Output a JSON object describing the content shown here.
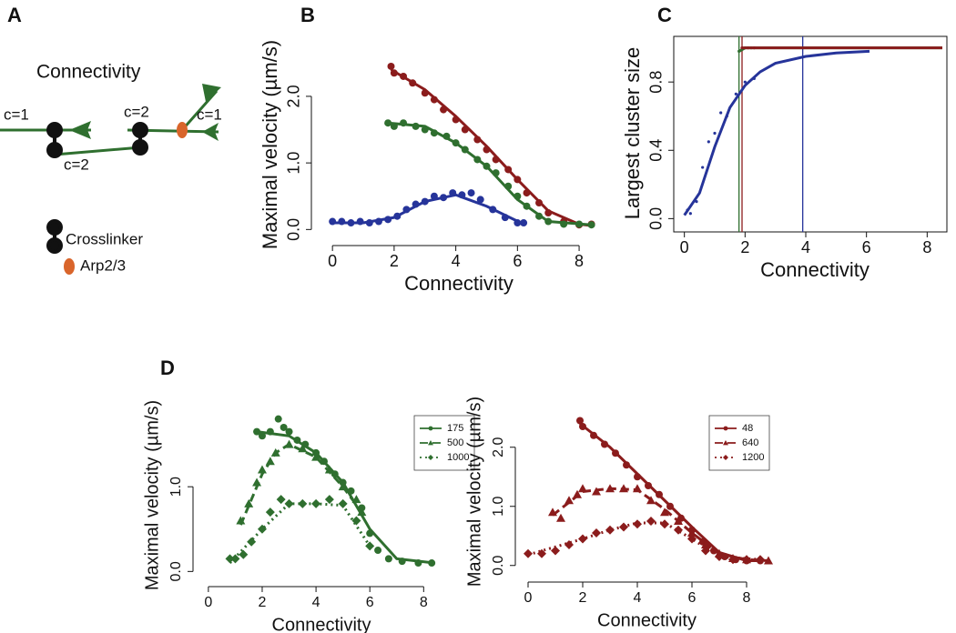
{
  "panel_labels": [
    "A",
    "B",
    "C",
    "D"
  ],
  "diagram": {
    "title": "Connectivity",
    "labels": [
      "c=1",
      "c=2",
      "c=2",
      "c=1"
    ],
    "legend": [
      "Crosslinker",
      "Arp2/3"
    ]
  },
  "chart_data": [
    {
      "type": "scatter",
      "xlabel": "Connectivity",
      "ylabel": "Maximal velocity (µm/s)",
      "xlim": [
        -0.3,
        8.5
      ],
      "ylim": [
        -0.05,
        2.6
      ],
      "xticks": [
        0,
        2,
        4,
        6,
        8
      ],
      "yticks": [
        {
          "value": 0,
          "label": "0.0"
        },
        {
          "value": 1,
          "label": "1.0"
        },
        {
          "value": 2,
          "label": "2.0"
        }
      ],
      "series": [
        {
          "color": "#8b1c1c",
          "marker": "circle",
          "x": [
            1.9,
            2,
            2.3,
            2.6,
            3,
            3.3,
            3.6,
            4,
            4.3,
            4.7,
            5,
            5.3,
            5.7,
            6,
            6.3,
            6.7,
            7,
            7.5,
            8,
            8.4
          ],
          "values": [
            2.45,
            2.35,
            2.3,
            2.2,
            2.05,
            1.95,
            1.8,
            1.65,
            1.5,
            1.35,
            1.2,
            1.05,
            0.9,
            0.75,
            0.55,
            0.4,
            0.25,
            0.12,
            0.07,
            0.08
          ],
          "curve": {
            "x": [
              1.9,
              3,
              4,
              5,
              6,
              7,
              8,
              8.4
            ],
            "values": [
              2.4,
              2.1,
              1.7,
              1.25,
              0.75,
              0.28,
              0.08,
              0.06
            ]
          }
        },
        {
          "color": "#2f6f2f",
          "marker": "circle",
          "x": [
            1.8,
            2,
            2.3,
            2.7,
            3,
            3.3,
            3.7,
            4,
            4.3,
            4.7,
            5,
            5.3,
            5.7,
            6,
            6.3,
            6.7,
            7,
            7.5,
            8,
            8.4
          ],
          "values": [
            1.6,
            1.55,
            1.6,
            1.55,
            1.5,
            1.45,
            1.4,
            1.3,
            1.2,
            1.05,
            0.95,
            0.85,
            0.65,
            0.5,
            0.35,
            0.2,
            0.12,
            0.08,
            0.08,
            0.07
          ],
          "curve": {
            "x": [
              1.8,
              3,
              4,
              5,
              6,
              7,
              8.4
            ],
            "values": [
              1.6,
              1.55,
              1.3,
              0.95,
              0.45,
              0.12,
              0.07
            ]
          }
        },
        {
          "color": "#26349a",
          "marker": "circle",
          "x": [
            0,
            0.3,
            0.6,
            0.9,
            1.2,
            1.5,
            1.8,
            2.1,
            2.4,
            2.7,
            3,
            3.3,
            3.6,
            3.9,
            4.2,
            4.5,
            4.8,
            5.2,
            5.6,
            6,
            6.2
          ],
          "values": [
            0.12,
            0.12,
            0.1,
            0.12,
            0.1,
            0.12,
            0.15,
            0.2,
            0.3,
            0.38,
            0.42,
            0.5,
            0.48,
            0.55,
            0.52,
            0.55,
            0.45,
            0.3,
            0.18,
            0.1,
            0.1
          ],
          "curve": {
            "x": [
              0,
              1,
              2,
              3,
              4,
              5,
              6.2
            ],
            "values": [
              0.1,
              0.1,
              0.18,
              0.42,
              0.52,
              0.35,
              0.08
            ]
          }
        }
      ]
    },
    {
      "type": "scatter",
      "xlabel": "Connectivity",
      "ylabel": "Largest cluster size",
      "frame": true,
      "xlim": [
        -0.2,
        8.8
      ],
      "ylim": [
        -0.03,
        1.03
      ],
      "xticks": [
        0,
        2,
        4,
        6,
        8
      ],
      "yticks": [
        {
          "value": 0,
          "label": "0.0"
        },
        {
          "value": 0.4,
          "label": "0.4"
        },
        {
          "value": 0.8,
          "label": "0.8"
        }
      ],
      "vlines": [
        {
          "value": 1.8,
          "color": "#2f6f2f"
        },
        {
          "value": 1.9,
          "color": "#8b1c1c"
        },
        {
          "value": 3.9,
          "color": "#26349a"
        }
      ],
      "series": [
        {
          "color": "#26349a",
          "marker": "dot",
          "x": [
            0.1,
            0.2,
            0.4,
            0.6,
            0.8,
            1,
            1.2,
            1.4,
            1.7,
            2,
            2.3
          ],
          "values": [
            0.05,
            0.03,
            0.1,
            0.3,
            0.45,
            0.5,
            0.62,
            0.6,
            0.73,
            0.8,
            0.82
          ],
          "curve": {
            "x": [
              0,
              0.5,
              1,
              1.5,
              2,
              2.5,
              3,
              4,
              5,
              6.1
            ],
            "values": [
              0.02,
              0.15,
              0.42,
              0.65,
              0.78,
              0.86,
              0.91,
              0.95,
              0.97,
              0.98
            ]
          }
        },
        {
          "color": "#2f6f2f",
          "marker": "dot",
          "x": [
            1.8,
            2,
            2.2
          ],
          "values": [
            0.98,
            1,
            1
          ],
          "curve": {
            "x": [
              1.8,
              2,
              8.5
            ],
            "values": [
              0.98,
              1,
              1
            ]
          }
        },
        {
          "color": "#8b1c1c",
          "marker": "dot",
          "x": [
            1.9,
            2.1,
            2.3
          ],
          "values": [
            1,
            1,
            1
          ],
          "curve": {
            "x": [
              1.9,
              8.5
            ],
            "values": [
              1,
              1
            ]
          }
        }
      ]
    },
    {
      "type": "scatter",
      "xlabel": "Connectivity",
      "ylabel": "Maximal velocity (µm/s)",
      "legend": "top-right",
      "xlim": [
        -0.3,
        8.7
      ],
      "ylim": [
        -0.05,
        1.85
      ],
      "xticks": [
        0,
        2,
        4,
        6,
        8
      ],
      "yticks": [
        {
          "value": 0,
          "label": "0.0"
        },
        {
          "value": 1,
          "label": "1.0"
        }
      ],
      "series": [
        {
          "name": "175",
          "color": "#2f6f2f",
          "marker": "circle",
          "dash": "solid",
          "x": [
            1.8,
            2,
            2.3,
            2.6,
            2.8,
            3,
            3.3,
            3.6,
            4,
            4.3,
            4.7,
            5,
            5.3,
            5.7,
            6,
            6.3,
            6.7,
            7.2,
            7.8,
            8.3
          ],
          "values": [
            1.65,
            1.6,
            1.65,
            1.8,
            1.7,
            1.65,
            1.55,
            1.5,
            1.4,
            1.3,
            1.15,
            1.05,
            0.95,
            0.75,
            0.45,
            0.25,
            0.15,
            0.12,
            0.1,
            0.1
          ],
          "curve": {
            "x": [
              1.8,
              3,
              4,
              5,
              6,
              7,
              8.4
            ],
            "values": [
              1.65,
              1.6,
              1.4,
              1.05,
              0.5,
              0.15,
              0.1
            ]
          }
        },
        {
          "name": "500",
          "color": "#2f6f2f",
          "marker": "triangle",
          "dash": "dashed",
          "x": [
            1.2,
            1.5,
            1.8,
            2,
            2.3,
            2.5,
            3,
            3.5,
            4,
            4.5,
            5,
            5.5,
            5.7
          ],
          "values": [
            0.6,
            0.8,
            1.05,
            1.2,
            1.3,
            1.4,
            1.5,
            1.45,
            1.35,
            1.2,
            1,
            0.85,
            0.7
          ],
          "curve": {
            "x": [
              1.2,
              2,
              2.5,
              3,
              4,
              5,
              5.7
            ],
            "values": [
              0.55,
              1.15,
              1.4,
              1.5,
              1.35,
              1,
              0.7
            ]
          }
        },
        {
          "name": "1000",
          "color": "#2f6f2f",
          "marker": "diamond",
          "dash": "dotted",
          "x": [
            0.8,
            1,
            1.3,
            1.6,
            2,
            2.3,
            2.7,
            3,
            3.5,
            4,
            4.5,
            5,
            5.5,
            6
          ],
          "values": [
            0.15,
            0.15,
            0.2,
            0.35,
            0.5,
            0.7,
            0.85,
            0.8,
            0.8,
            0.8,
            0.85,
            0.8,
            0.6,
            0.3
          ],
          "curve": {
            "x": [
              0.8,
              2,
              3,
              4,
              5,
              6
            ],
            "values": [
              0.1,
              0.5,
              0.8,
              0.8,
              0.78,
              0.3
            ]
          }
        }
      ]
    },
    {
      "type": "scatter",
      "xlabel": "Connectivity",
      "ylabel": "Maximal velocity (µm/s)",
      "legend": "top-right",
      "xlim": [
        -0.3,
        9
      ],
      "ylim": [
        -0.05,
        2.55
      ],
      "xticks": [
        0,
        2,
        4,
        6,
        8
      ],
      "yticks": [
        {
          "value": 0,
          "label": "0.0"
        },
        {
          "value": 1,
          "label": "1.0"
        },
        {
          "value": 2,
          "label": "2.0"
        }
      ],
      "series": [
        {
          "name": "48",
          "color": "#8b1c1c",
          "marker": "circle",
          "dash": "solid",
          "x": [
            1.9,
            2,
            2.4,
            2.8,
            3.2,
            3.6,
            4,
            4.4,
            4.8,
            5.2,
            5.6,
            6,
            6.4,
            6.8,
            7.2,
            7.6,
            8,
            8.5
          ],
          "values": [
            2.45,
            2.35,
            2.2,
            2.05,
            1.9,
            1.7,
            1.5,
            1.35,
            1.2,
            1,
            0.8,
            0.6,
            0.4,
            0.25,
            0.15,
            0.1,
            0.08,
            0.08
          ],
          "curve": {
            "x": [
              1.9,
              3,
              4,
              5,
              6,
              7,
              8,
              8.6
            ],
            "values": [
              2.4,
              2,
              1.55,
              1.1,
              0.65,
              0.22,
              0.08,
              0.08
            ]
          }
        },
        {
          "name": "640",
          "color": "#8b1c1c",
          "marker": "triangle",
          "dash": "dashed",
          "x": [
            0.9,
            1.2,
            1.5,
            1.8,
            2,
            2.5,
            3,
            3.5,
            4,
            4.5,
            5,
            5.5,
            6,
            6.5,
            7,
            7.5,
            8,
            8.8
          ],
          "values": [
            0.9,
            0.8,
            1.1,
            1.2,
            1.3,
            1.25,
            1.3,
            1.3,
            1.3,
            1.1,
            0.9,
            0.75,
            0.55,
            0.35,
            0.2,
            0.12,
            0.1,
            0.08
          ],
          "curve": {
            "x": [
              0.9,
              2,
              3,
              4,
              5,
              6,
              7,
              8,
              8.8
            ],
            "values": [
              0.85,
              1.25,
              1.3,
              1.28,
              0.95,
              0.55,
              0.2,
              0.1,
              0.08
            ]
          }
        },
        {
          "name": "1200",
          "color": "#8b1c1c",
          "marker": "diamond",
          "dash": "dotted",
          "x": [
            0,
            0.5,
            1,
            1.5,
            2,
            2.5,
            3,
            3.5,
            4,
            4.5,
            5,
            5.5,
            6,
            6.5,
            7,
            7.5,
            8,
            8.5
          ],
          "values": [
            0.2,
            0.2,
            0.25,
            0.35,
            0.45,
            0.55,
            0.6,
            0.65,
            0.7,
            0.75,
            0.7,
            0.6,
            0.45,
            0.25,
            0.15,
            0.1,
            0.1,
            0.1
          ],
          "curve": {
            "x": [
              0,
              2,
              3,
              4,
              5,
              6,
              7,
              8.5
            ],
            "values": [
              0.18,
              0.45,
              0.6,
              0.72,
              0.72,
              0.45,
              0.15,
              0.1
            ]
          }
        }
      ]
    }
  ]
}
